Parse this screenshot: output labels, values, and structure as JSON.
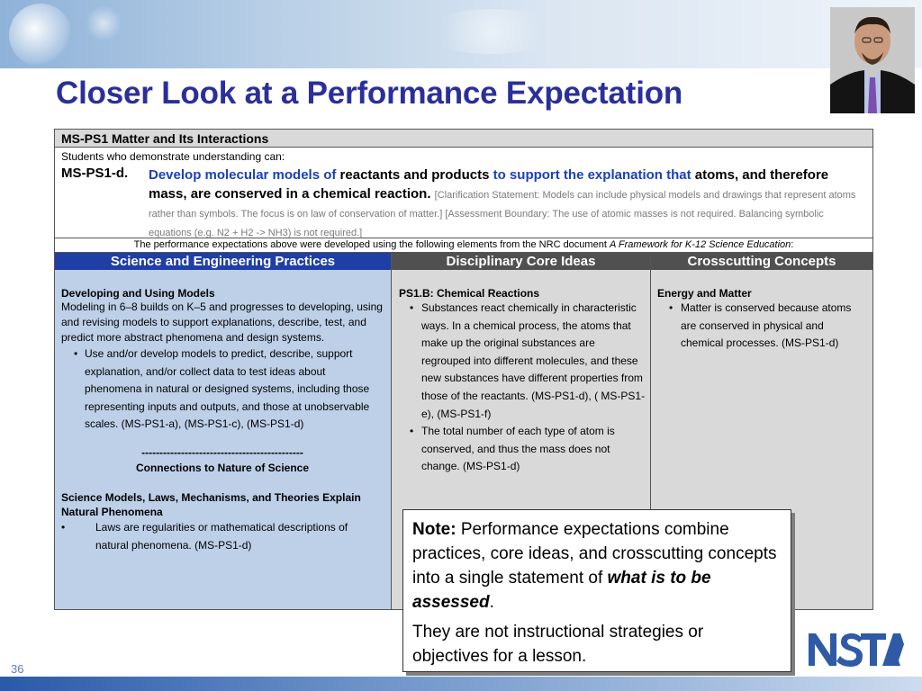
{
  "slide": {
    "title": "Closer Look at a Performance Expectation",
    "page_number": "36"
  },
  "pe": {
    "header": "MS-PS1 Matter and Its Interactions",
    "subheader": "Students who demonstrate understanding can:",
    "code": "MS-PS1-d.",
    "statement_parts": {
      "p1": "Develop molecular models of",
      "p2": " reactants and products ",
      "p3": "to support the explanation that",
      "p4": " atoms, and therefore mass, are conserved in a chemical reaction. "
    },
    "clarification": "[Clarification Statement: Models can include physical models and drawings that represent atoms rather than symbols. The focus is on law of conservation of matter.] [Assessment Boundary: The use of atomic masses is not required. Balancing symbolic equations (e.g. N2 + H2 -> NH3) is not required.]",
    "developed_note": "The performance expectations above were developed using the following elements from the NRC document ",
    "developed_doc": "A Framework for K-12 Science Education",
    "developed_colon": ":"
  },
  "columns": {
    "sep": {
      "header": "Science and Engineering Practices",
      "heading": "Developing and Using Models",
      "description": "Modeling in 6–8 builds on K–5 and progresses to developing, using and revising models to support explanations, describe, test, and predict more abstract phenomena and design systems.",
      "bullets": [
        "Use and/or develop models to predict, describe, support explanation, and/or collect data to test ideas about phenomena in natural or designed systems, including those representing inputs and outputs, and those at unobservable scales. (MS-PS1-a), (MS-PS1-c), (MS-PS1-d)"
      ],
      "divider": "---------------------------------------------",
      "connections_heading": "Connections to Nature of Science",
      "nos_heading": "Science Models, Laws, Mechanisms, and Theories Explain Natural Phenomena",
      "nos_bullets": [
        "Laws are regularities or mathematical descriptions of natural phenomena. (MS-PS1-d)"
      ]
    },
    "dci": {
      "header": "Disciplinary Core Ideas",
      "heading": "PS1.B: Chemical Reactions",
      "bullets": [
        "Substances react chemically in characteristic ways. In a chemical process, the atoms that make up the original substances are regrouped into different molecules, and these new substances have different properties from those of the reactants. (MS-PS1-d), ( MS-PS1-e), (MS-PS1-f)",
        "The total number of each type of atom is conserved, and thus the mass does not change. (MS-PS1-d)"
      ]
    },
    "ccc": {
      "header": "Crosscutting Concepts",
      "heading": "Energy and Matter",
      "bullets": [
        "Matter is conserved because atoms are conserved in physical and chemical processes. (MS-PS1-d)"
      ]
    }
  },
  "note": {
    "label": "Note:",
    "line1": " Performance expectations combine practices, core ideas, and crosscutting concepts into a single statement of ",
    "emphasis": "what is to be assessed",
    "line1_end": ".",
    "line2": "They are not instructional strategies or objectives for a lesson."
  },
  "logo": {
    "text": "NSTA"
  },
  "colors": {
    "title": "#2b2f9a",
    "sep_header": "#1f3ea6",
    "sep_body": "#bdd0e8",
    "grey_header": "#505050",
    "grey_body": "#d9d9d9",
    "statement_blue": "#1a3fbf",
    "logo_blue": "#2e5aa6"
  }
}
